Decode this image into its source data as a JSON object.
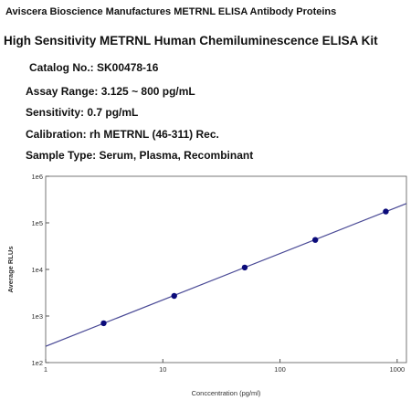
{
  "header": {
    "brand_line": "Aviscera Bioscience Manufactures METRNL ELISA Antibody Proteins",
    "title": "High Sensitivity METRNL Human Chemiluminescence ELISA Kit"
  },
  "details": [
    "Catalog No.: SK00478-16",
    "Assay Range: 3.125 ~ 800 pg/mL",
    "Sensitivity: 0.7 pg/mL",
    "Calibration: rh METRNL (46-311) Rec.",
    "Sample Type: Serum, Plasma, Recombinant"
  ],
  "chart_data": {
    "type": "scatter",
    "x_label": "Conccentration (pg/ml)",
    "y_label": "Average RLUs",
    "x": [
      3.125,
      12.5,
      50,
      200,
      800
    ],
    "series": [
      {
        "color": "#0b0b7a",
        "values": [
          700,
          2700,
          11000,
          43000,
          175000
        ]
      }
    ],
    "fit": {
      "x": [
        1,
        1200
      ],
      "values": [
        224,
        260000
      ],
      "color": "#4a4a96"
    },
    "xlim": [
      1,
      1200
    ],
    "ylim": [
      100,
      1000000
    ],
    "log_x": true,
    "log_y": true,
    "xticks": [
      1,
      10,
      100,
      1000
    ],
    "yticks": [
      {
        "value": 100,
        "label": "1e2"
      },
      {
        "value": 1000,
        "label": "1e3"
      },
      {
        "value": 10000,
        "label": "1e4"
      },
      {
        "value": 100000,
        "label": "1e5"
      },
      {
        "value": 1000000,
        "label": "1e6"
      }
    ]
  }
}
